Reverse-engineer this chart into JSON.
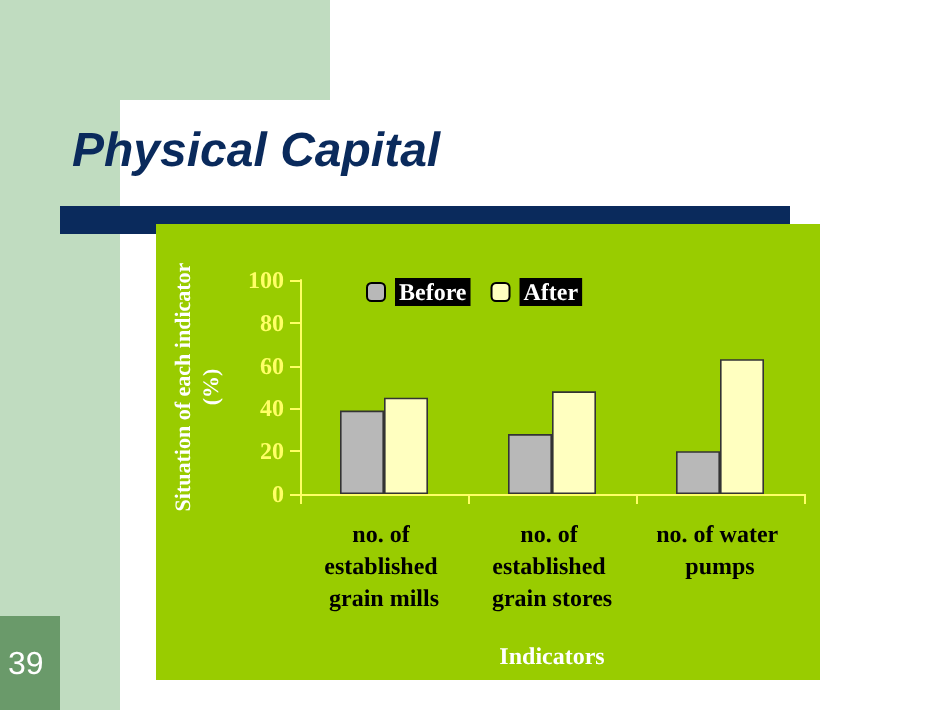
{
  "chart_data": {
    "type": "bar",
    "title": "Physical Capital",
    "xlabel": "Indicators",
    "ylabel": "Situation of each indicator (%)",
    "categories": [
      "no. of established grain mills",
      "no. of established grain stores",
      "no. of water pumps"
    ],
    "series": [
      {
        "name": "Before",
        "color": "#b8b8b8",
        "values": [
          39,
          28,
          20
        ]
      },
      {
        "name": "After",
        "color": "#ffffc0",
        "values": [
          45,
          48,
          63
        ]
      }
    ],
    "ylim": [
      0,
      100
    ],
    "yticks": [
      0,
      20,
      40,
      60,
      80,
      100
    ],
    "grid": false,
    "legend": "top left",
    "annotations": [
      "39"
    ]
  }
}
